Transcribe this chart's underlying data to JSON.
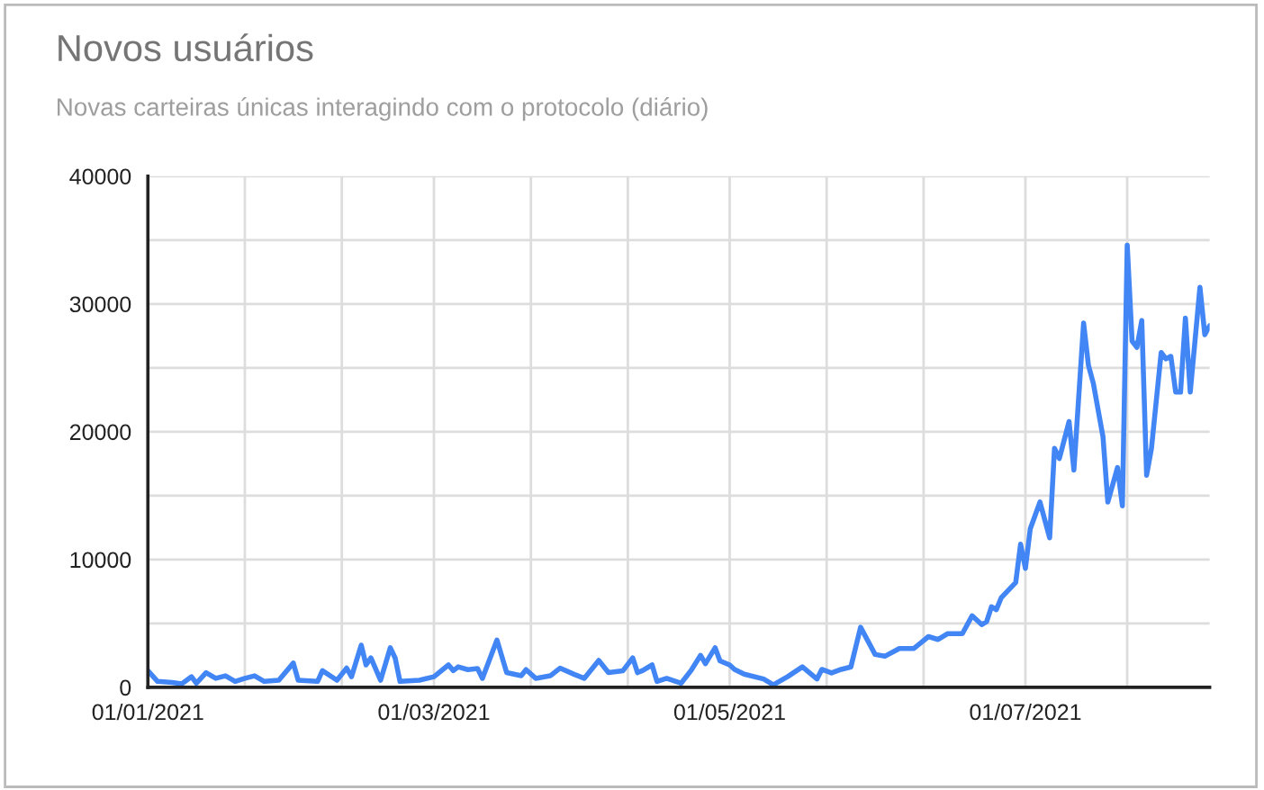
{
  "chart_data": {
    "type": "line",
    "title": "Novos usuários",
    "subtitle": "Novas carteiras únicas interagindo com o protocolo (diário)",
    "x": [
      "2021-01-01",
      "2021-01-03",
      "2021-01-06",
      "2021-01-08",
      "2021-01-10",
      "2021-01-11",
      "2021-01-13",
      "2021-01-15",
      "2021-01-17",
      "2021-01-19",
      "2021-01-21",
      "2021-01-23",
      "2021-01-25",
      "2021-01-28",
      "2021-01-31",
      "2021-02-01",
      "2021-02-05",
      "2021-02-06",
      "2021-02-09",
      "2021-02-11",
      "2021-02-12",
      "2021-02-14",
      "2021-02-15",
      "2021-02-16",
      "2021-02-18",
      "2021-02-20",
      "2021-02-21",
      "2021-02-22",
      "2021-02-26",
      "2021-03-01",
      "2021-03-04",
      "2021-03-05",
      "2021-03-06",
      "2021-03-08",
      "2021-03-10",
      "2021-03-11",
      "2021-03-14",
      "2021-03-16",
      "2021-03-19",
      "2021-03-20",
      "2021-03-22",
      "2021-03-25",
      "2021-03-27",
      "2021-03-30",
      "2021-04-01",
      "2021-04-04",
      "2021-04-06",
      "2021-04-09",
      "2021-04-11",
      "2021-04-12",
      "2021-04-13",
      "2021-04-15",
      "2021-04-16",
      "2021-04-18",
      "2021-04-21",
      "2021-04-23",
      "2021-04-25",
      "2021-04-26",
      "2021-04-28",
      "2021-04-29",
      "2021-05-01",
      "2021-05-02",
      "2021-05-04",
      "2021-05-08",
      "2021-05-10",
      "2021-05-13",
      "2021-05-16",
      "2021-05-19",
      "2021-05-20",
      "2021-05-22",
      "2021-05-24",
      "2021-05-26",
      "2021-05-28",
      "2021-05-31",
      "2021-06-02",
      "2021-06-05",
      "2021-06-08",
      "2021-06-11",
      "2021-06-13",
      "2021-06-15",
      "2021-06-18",
      "2021-06-20",
      "2021-06-22",
      "2021-06-23",
      "2021-06-24",
      "2021-06-25",
      "2021-06-26",
      "2021-06-29",
      "2021-06-30",
      "2021-07-01",
      "2021-07-02",
      "2021-07-04",
      "2021-07-06",
      "2021-07-07",
      "2021-07-08",
      "2021-07-10",
      "2021-07-11",
      "2021-07-13",
      "2021-07-14",
      "2021-07-15",
      "2021-07-17",
      "2021-07-18",
      "2021-07-20",
      "2021-07-21",
      "2021-07-22",
      "2021-07-23",
      "2021-07-24",
      "2021-07-25",
      "2021-07-26",
      "2021-07-27",
      "2021-07-29",
      "2021-07-30",
      "2021-07-31",
      "2021-08-01",
      "2021-08-02",
      "2021-08-03",
      "2021-08-04",
      "2021-08-06",
      "2021-08-07",
      "2021-08-08"
    ],
    "series": [
      {
        "color": "#4285f4",
        "values": [
          1300,
          460,
          370,
          280,
          830,
          320,
          1150,
          700,
          900,
          460,
          700,
          900,
          460,
          550,
          1900,
          550,
          460,
          1300,
          550,
          1500,
          830,
          3300,
          1750,
          2300,
          550,
          3100,
          2300,
          460,
          550,
          830,
          1750,
          1300,
          1600,
          1380,
          1470,
          700,
          3700,
          1150,
          900,
          1380,
          700,
          900,
          1500,
          1000,
          700,
          2100,
          1150,
          1300,
          2300,
          1150,
          1300,
          1750,
          460,
          700,
          320,
          1300,
          2500,
          1850,
          3100,
          2070,
          1750,
          1400,
          1030,
          650,
          190,
          840,
          1600,
          650,
          1400,
          1120,
          1400,
          1590,
          4700,
          2570,
          2430,
          3040,
          3040,
          3970,
          3740,
          4200,
          4200,
          5600,
          4900,
          5140,
          6300,
          6070,
          7000,
          8200,
          11200,
          9300,
          12400,
          14500,
          11700,
          18700,
          17900,
          20800,
          17000,
          28500,
          25200,
          23800,
          19600,
          14500,
          17200,
          14200,
          34600,
          27100,
          26600,
          28700,
          16600,
          18700,
          26200,
          25700,
          25900,
          23100,
          23100,
          28900,
          23100,
          31300,
          27600,
          28300
        ]
      }
    ],
    "xlim": [
      "2021-01-01",
      "2021-08-08"
    ],
    "xticks": [
      {
        "value": "2021-01-01",
        "label": "01/01/2021"
      },
      {
        "value": "2021-01-21",
        "label": null
      },
      {
        "value": "2021-02-10",
        "label": null
      },
      {
        "value": "2021-03-01",
        "label": "01/03/2021"
      },
      {
        "value": "2021-03-21",
        "label": null
      },
      {
        "value": "2021-04-10",
        "label": null
      },
      {
        "value": "2021-05-01",
        "label": "01/05/2021"
      },
      {
        "value": "2021-05-21",
        "label": null
      },
      {
        "value": "2021-06-10",
        "label": null
      },
      {
        "value": "2021-07-01",
        "label": "01/07/2021"
      },
      {
        "value": "2021-07-22",
        "label": null
      }
    ],
    "ylim": [
      0,
      40000
    ],
    "yticks": [
      0,
      {
        "value": 5000,
        "label": null
      },
      10000,
      {
        "value": 15000,
        "label": null
      },
      20000,
      {
        "value": 25000,
        "label": null
      },
      30000,
      {
        "value": 35000,
        "label": null
      },
      40000
    ],
    "grid": true,
    "marker": "none",
    "line_style": "solid"
  }
}
